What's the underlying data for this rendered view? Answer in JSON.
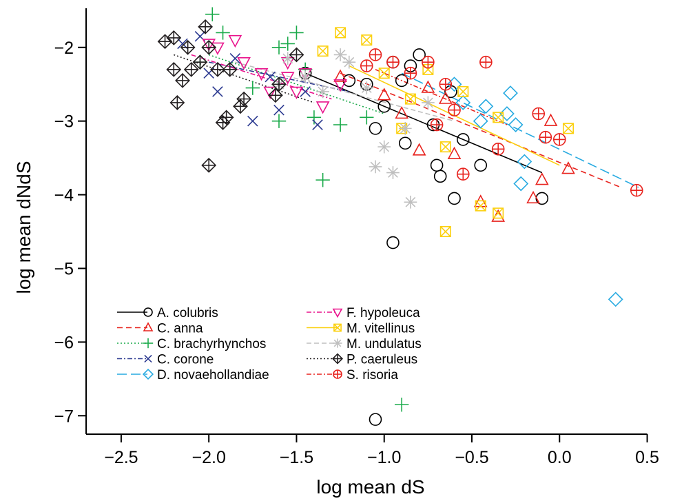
{
  "chart_data": {
    "type": "scatter",
    "title": "",
    "xlabel": "log mean dS",
    "ylabel": "log mean dNdS",
    "xlim": [
      -2.7,
      0.6
    ],
    "ylim": [
      -7.25,
      -1.45
    ],
    "xticks": [
      -2.5,
      -2.0,
      -1.5,
      -1.0,
      -0.5,
      0.0,
      0.5
    ],
    "xtick_labels": [
      "−2.5",
      "−2.0",
      "−1.5",
      "−1.0",
      "−0.5",
      "0.0",
      "0.5"
    ],
    "yticks": [
      -7,
      -6,
      -5,
      -4,
      -3,
      -2
    ],
    "ytick_labels": [
      "−7",
      "−6",
      "−5",
      "−4",
      "−3",
      "−2"
    ],
    "legend_position": "bottom-left",
    "grid": false,
    "series": [
      {
        "name": "A. colubris",
        "color": "#000000",
        "marker": "circle",
        "dash": "",
        "fit": [
          [
            -1.45,
            -2.35
          ],
          [
            -0.1,
            -3.7
          ]
        ],
        "points": [
          [
            -1.05,
            -7.05
          ],
          [
            -0.95,
            -4.65
          ],
          [
            -0.6,
            -4.05
          ],
          [
            -0.45,
            -3.6
          ],
          [
            -0.1,
            -4.05
          ],
          [
            -0.7,
            -3.6
          ],
          [
            -0.68,
            -3.75
          ],
          [
            -0.55,
            -3.25
          ],
          [
            -0.95,
            -2.2
          ],
          [
            -0.85,
            -2.25
          ],
          [
            -0.8,
            -2.1
          ],
          [
            -1.1,
            -2.5
          ],
          [
            -1.05,
            -3.1
          ],
          [
            -0.88,
            -3.3
          ],
          [
            -0.72,
            -3.05
          ],
          [
            -0.62,
            -2.6
          ],
          [
            -1.45,
            -2.35
          ],
          [
            -1.2,
            -2.45
          ],
          [
            -1.0,
            -2.8
          ],
          [
            -0.9,
            -2.45
          ]
        ]
      },
      {
        "name": "C. anna",
        "color": "#e8231e",
        "marker": "triangle-up",
        "dash": "8,5",
        "fit": [
          [
            -1.25,
            -2.35
          ],
          [
            0.35,
            -3.9
          ]
        ],
        "points": [
          [
            -0.05,
            -3.0
          ],
          [
            -0.1,
            -3.8
          ],
          [
            -0.15,
            -4.05
          ],
          [
            -0.35,
            -4.3
          ],
          [
            -0.45,
            -4.1
          ],
          [
            -0.6,
            -3.45
          ],
          [
            -0.8,
            -3.4
          ],
          [
            -0.9,
            -2.9
          ],
          [
            -1.0,
            -2.65
          ],
          [
            -0.75,
            -2.55
          ],
          [
            0.05,
            -3.65
          ],
          [
            -1.25,
            -2.4
          ],
          [
            -0.65,
            -2.7
          ]
        ]
      },
      {
        "name": "C. brachyrhynchos",
        "color": "#1aaa4a",
        "marker": "plus",
        "dash": "2,3",
        "fit": [
          [
            -2.0,
            -2.1
          ],
          [
            -1.0,
            -2.9
          ]
        ],
        "points": [
          [
            -1.98,
            -1.55
          ],
          [
            -1.92,
            -1.8
          ],
          [
            -1.55,
            -1.95
          ],
          [
            -1.5,
            -1.8
          ],
          [
            -1.6,
            -2.0
          ],
          [
            -1.45,
            -2.3
          ],
          [
            -1.4,
            -2.95
          ],
          [
            -1.35,
            -3.8
          ],
          [
            -1.25,
            -3.05
          ],
          [
            -1.1,
            -2.95
          ],
          [
            -0.9,
            -6.85
          ],
          [
            -2.05,
            -2.2
          ],
          [
            -1.75,
            -2.55
          ],
          [
            -1.6,
            -3.0
          ]
        ]
      },
      {
        "name": "C. corone",
        "color": "#2b3990",
        "marker": "x",
        "dash": "7,3,2,3",
        "fit": [
          [
            -2.0,
            -2.2
          ],
          [
            -1.2,
            -2.6
          ]
        ],
        "points": [
          [
            -2.15,
            -1.95
          ],
          [
            -2.05,
            -1.85
          ],
          [
            -2.0,
            -2.35
          ],
          [
            -1.95,
            -2.6
          ],
          [
            -1.75,
            -3.0
          ],
          [
            -1.6,
            -2.85
          ],
          [
            -1.38,
            -3.05
          ],
          [
            -1.45,
            -2.6
          ],
          [
            -1.65,
            -2.4
          ],
          [
            -1.85,
            -2.15
          ]
        ]
      },
      {
        "name": "D. novaehollandiae",
        "color": "#27aae1",
        "marker": "diamond",
        "dash": "14,6",
        "fit": [
          [
            -0.9,
            -2.35
          ],
          [
            0.45,
            -3.9
          ]
        ],
        "points": [
          [
            0.32,
            -5.42
          ],
          [
            -0.22,
            -3.85
          ],
          [
            -0.25,
            -3.05
          ],
          [
            -0.28,
            -2.62
          ],
          [
            -0.42,
            -2.8
          ],
          [
            -0.55,
            -2.75
          ],
          [
            -0.6,
            -2.5
          ],
          [
            -0.3,
            -2.9
          ],
          [
            -0.2,
            -3.55
          ],
          [
            -0.45,
            -3.0
          ]
        ]
      },
      {
        "name": "F. hypoleuca",
        "color": "#e9138c",
        "marker": "triangle-down",
        "dash": "7,3,2,3",
        "fit": [
          [
            -2.1,
            -2.1
          ],
          [
            -1.3,
            -2.7
          ]
        ],
        "points": [
          [
            -1.85,
            -1.9
          ],
          [
            -1.95,
            -2.0
          ],
          [
            -2.0,
            -1.95
          ],
          [
            -1.8,
            -2.2
          ],
          [
            -1.7,
            -2.35
          ],
          [
            -1.55,
            -2.2
          ],
          [
            -1.45,
            -2.35
          ],
          [
            -1.5,
            -2.6
          ],
          [
            -1.35,
            -2.8
          ],
          [
            -1.25,
            -2.5
          ],
          [
            -1.55,
            -2.4
          ],
          [
            -1.65,
            -2.6
          ]
        ]
      },
      {
        "name": "M. vitellinus",
        "color": "#fbd00f",
        "marker": "square-x",
        "dash": "",
        "fit": [
          [
            -1.2,
            -2.25
          ],
          [
            0.0,
            -3.6
          ]
        ],
        "points": [
          [
            -0.65,
            -4.5
          ],
          [
            -0.45,
            -4.15
          ],
          [
            -0.35,
            -4.25
          ],
          [
            -0.65,
            -3.35
          ],
          [
            -0.9,
            -3.1
          ],
          [
            0.05,
            -3.1
          ],
          [
            -1.1,
            -1.9
          ],
          [
            -1.25,
            -1.8
          ],
          [
            -1.35,
            -2.05
          ],
          [
            -1.0,
            -2.35
          ],
          [
            -0.55,
            -2.6
          ],
          [
            -0.35,
            -2.95
          ],
          [
            -0.85,
            -2.7
          ],
          [
            -0.75,
            -2.3
          ]
        ]
      },
      {
        "name": "M. undulatus",
        "color": "#bfbfbf",
        "marker": "asterisk",
        "dash": "7,4",
        "fit": [
          [
            -1.85,
            -2.2
          ],
          [
            -0.6,
            -3.0
          ]
        ],
        "points": [
          [
            -0.85,
            -4.1
          ],
          [
            -1.05,
            -3.62
          ],
          [
            -0.95,
            -3.7
          ],
          [
            -1.0,
            -3.35
          ],
          [
            -0.88,
            -3.1
          ],
          [
            -1.2,
            -2.2
          ],
          [
            -1.45,
            -2.4
          ],
          [
            -1.55,
            -2.15
          ],
          [
            -1.25,
            -2.1
          ],
          [
            -1.1,
            -2.55
          ],
          [
            -0.75,
            -2.75
          ],
          [
            -1.6,
            -2.5
          ],
          [
            -1.35,
            -2.6
          ]
        ]
      },
      {
        "name": "P. caeruleus",
        "color": "#231f20",
        "marker": "diamond-plus",
        "dash": "2,3",
        "fit": [
          [
            -2.2,
            -2.1
          ],
          [
            -1.4,
            -2.75
          ]
        ],
        "points": [
          [
            -2.25,
            -1.92
          ],
          [
            -2.2,
            -1.87
          ],
          [
            -2.02,
            -1.72
          ],
          [
            -2.0,
            -2.0
          ],
          [
            -2.05,
            -2.2
          ],
          [
            -2.1,
            -2.3
          ],
          [
            -2.2,
            -2.3
          ],
          [
            -2.15,
            -2.45
          ],
          [
            -2.18,
            -2.75
          ],
          [
            -1.95,
            -2.3
          ],
          [
            -1.9,
            -2.95
          ],
          [
            -1.92,
            -3.02
          ],
          [
            -1.8,
            -2.7
          ],
          [
            -1.82,
            -2.8
          ],
          [
            -2.0,
            -3.6
          ],
          [
            -1.6,
            -2.5
          ],
          [
            -1.62,
            -2.65
          ],
          [
            -1.5,
            -2.1
          ],
          [
            -2.12,
            -2.0
          ],
          [
            -1.88,
            -2.3
          ]
        ]
      },
      {
        "name": "S. risoria",
        "color": "#e8231e",
        "marker": "circle-plus",
        "dash": "7,3,2,3",
        "fit": [
          [
            -1.05,
            -2.3
          ],
          [
            -0.3,
            -3.05
          ]
        ],
        "points": [
          [
            0.44,
            -3.94
          ],
          [
            -0.12,
            -2.9
          ],
          [
            -0.08,
            -3.22
          ],
          [
            0.0,
            -3.25
          ],
          [
            -0.42,
            -2.2
          ],
          [
            -0.35,
            -3.38
          ],
          [
            -0.55,
            -3.72
          ],
          [
            -0.7,
            -3.05
          ],
          [
            -0.75,
            -2.2
          ],
          [
            -0.95,
            -2.2
          ],
          [
            -1.05,
            -2.1
          ],
          [
            -1.1,
            -2.25
          ],
          [
            -0.85,
            -2.35
          ],
          [
            -0.6,
            -2.85
          ],
          [
            -0.65,
            -2.5
          ]
        ]
      }
    ]
  }
}
